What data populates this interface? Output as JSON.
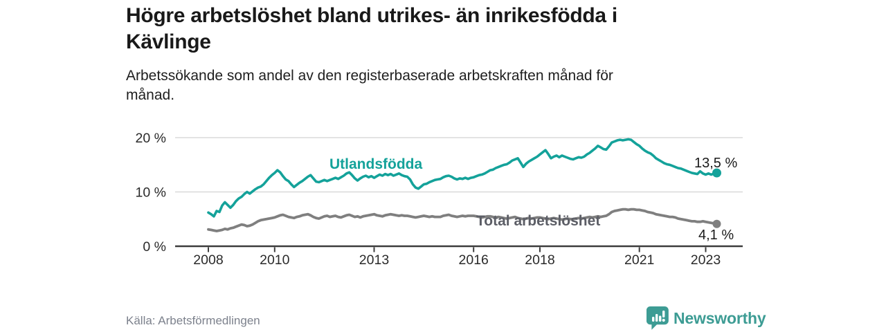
{
  "header": {
    "title": "Högre arbetslöshet bland utrikes- än inrikesfödda i\nKävlinge",
    "subtitle": "Arbetssökande som andel av den registerbaserade arbetskraften månad för\nmånad."
  },
  "footer": {
    "source": "Källa: Arbetsförmedlingen",
    "brand": "Newsworthy"
  },
  "colors": {
    "series_utlandsfodda": "#14a29a",
    "series_total": "#7f7f7f",
    "series_total_label": "#5c5e66",
    "gridline": "#d2d2d2",
    "axis": "#3c3c3c",
    "tick_label": "#2a2a2a",
    "annotation": "#1a1a1a",
    "logo_teal": "#3d9c94"
  },
  "chart_data": {
    "type": "line",
    "title": "Högre arbetslöshet bland utrikes- än inrikesfödda i Kävlinge",
    "subtitle": "Arbetssökande som andel av den registerbaserade arbetskraften månad för månad.",
    "source": "Källa: Arbetsförmedlingen",
    "x_unit": "year-month",
    "x_start": 2008.0,
    "x_step_months": 1,
    "x_end": "2023-05",
    "x_ticks": [
      "2008",
      "2010",
      "2013",
      "2016",
      "2018",
      "2021",
      "2023"
    ],
    "x_tick_years": [
      2008,
      2010,
      2013,
      2016,
      2018,
      2021,
      2023
    ],
    "y_ticks": [
      0,
      10,
      20
    ],
    "y_tick_labels": [
      "0 %",
      "10 %",
      "20 %"
    ],
    "ylim": [
      0,
      21.7
    ],
    "grid": "horizontal-only",
    "legend": "inline-labels",
    "series": [
      {
        "name": "Utlandsfödda",
        "color": "#14a29a",
        "end_label": "13,5 %",
        "end_value": 13.5,
        "values": [
          6.2,
          5.9,
          5.5,
          6.5,
          6.3,
          7.5,
          8.1,
          7.6,
          7.1,
          7.6,
          8.3,
          8.8,
          9.1,
          9.6,
          10.0,
          9.7,
          10.1,
          10.5,
          10.8,
          11.0,
          11.4,
          12.0,
          12.6,
          13.1,
          13.5,
          14.0,
          13.6,
          12.9,
          12.3,
          12.0,
          11.4,
          10.9,
          11.3,
          11.7,
          12.0,
          12.4,
          12.8,
          13.1,
          12.5,
          11.9,
          11.8,
          12.0,
          12.2,
          12.0,
          12.2,
          12.4,
          12.6,
          12.4,
          12.7,
          13.0,
          13.4,
          13.6,
          13.1,
          12.5,
          12.1,
          12.5,
          12.8,
          13.0,
          12.7,
          12.9,
          12.6,
          12.9,
          13.2,
          13.0,
          13.3,
          13.1,
          13.3,
          13.0,
          13.2,
          13.4,
          13.1,
          12.9,
          12.8,
          12.3,
          11.4,
          10.8,
          10.6,
          11.0,
          11.4,
          11.5,
          11.8,
          12.0,
          12.2,
          12.3,
          12.4,
          12.7,
          12.9,
          13.0,
          12.8,
          12.5,
          12.3,
          12.5,
          12.4,
          12.6,
          12.4,
          12.6,
          12.7,
          12.9,
          13.1,
          13.2,
          13.4,
          13.7,
          14.0,
          14.1,
          14.4,
          14.6,
          14.8,
          15.0,
          15.1,
          15.4,
          15.8,
          16.0,
          16.2,
          15.4,
          14.6,
          15.2,
          15.6,
          15.9,
          16.2,
          16.5,
          16.9,
          17.3,
          17.7,
          17.0,
          16.2,
          16.5,
          16.7,
          16.4,
          16.7,
          16.5,
          16.3,
          16.1,
          16.0,
          16.2,
          16.4,
          16.3,
          16.5,
          16.9,
          17.2,
          17.6,
          18.0,
          18.5,
          18.2,
          17.9,
          17.8,
          18.4,
          19.1,
          19.3,
          19.5,
          19.6,
          19.5,
          19.6,
          19.7,
          19.6,
          19.2,
          18.8,
          18.5,
          18.0,
          17.6,
          17.3,
          17.1,
          16.7,
          16.2,
          15.9,
          15.6,
          15.3,
          15.1,
          15.0,
          14.8,
          14.6,
          14.4,
          14.3,
          14.1,
          13.9,
          13.7,
          13.5,
          13.4,
          13.3,
          13.8,
          13.4,
          13.2,
          13.4,
          13.2,
          13.4,
          13.5
        ]
      },
      {
        "name": "Total arbetslöshet",
        "color": "#7f7f7f",
        "end_label": "4,1 %",
        "end_value": 4.1,
        "values": [
          3.1,
          3.0,
          2.9,
          2.8,
          2.9,
          3.0,
          3.2,
          3.1,
          3.3,
          3.4,
          3.6,
          3.8,
          4.0,
          3.9,
          3.7,
          3.8,
          4.0,
          4.3,
          4.6,
          4.8,
          4.9,
          5.0,
          5.1,
          5.2,
          5.3,
          5.5,
          5.7,
          5.8,
          5.6,
          5.4,
          5.3,
          5.2,
          5.4,
          5.5,
          5.7,
          5.8,
          5.9,
          5.7,
          5.4,
          5.2,
          5.1,
          5.3,
          5.5,
          5.6,
          5.4,
          5.5,
          5.6,
          5.4,
          5.3,
          5.5,
          5.7,
          5.8,
          5.6,
          5.4,
          5.5,
          5.3,
          5.5,
          5.6,
          5.7,
          5.8,
          5.9,
          5.7,
          5.6,
          5.5,
          5.7,
          5.8,
          5.9,
          5.8,
          5.7,
          5.6,
          5.7,
          5.6,
          5.6,
          5.5,
          5.4,
          5.3,
          5.4,
          5.5,
          5.6,
          5.5,
          5.4,
          5.5,
          5.4,
          5.4,
          5.4,
          5.6,
          5.7,
          5.8,
          5.6,
          5.5,
          5.4,
          5.5,
          5.6,
          5.5,
          5.6,
          5.6,
          5.6,
          5.5,
          5.4,
          5.3,
          5.4,
          5.5,
          5.5,
          5.4,
          5.3,
          5.4,
          5.3,
          5.2,
          5.1,
          5.2,
          5.3,
          5.4,
          5.2,
          5.1,
          5.0,
          5.1,
          5.2,
          5.1,
          5.2,
          5.3,
          5.3,
          5.2,
          5.1,
          5.0,
          5.1,
          5.2,
          5.1,
          5.0,
          4.9,
          5.0,
          5.1,
          5.0,
          5.0,
          5.1,
          5.2,
          5.1,
          5.2,
          5.3,
          5.4,
          5.3,
          5.4,
          5.5,
          5.4,
          5.5,
          5.6,
          5.9,
          6.3,
          6.5,
          6.6,
          6.7,
          6.8,
          6.8,
          6.7,
          6.8,
          6.8,
          6.7,
          6.7,
          6.6,
          6.5,
          6.3,
          6.2,
          6.1,
          5.9,
          5.8,
          5.7,
          5.6,
          5.5,
          5.4,
          5.4,
          5.3,
          5.1,
          5.0,
          4.9,
          4.8,
          4.7,
          4.6,
          4.6,
          4.5,
          4.5,
          4.6,
          4.5,
          4.4,
          4.3,
          4.2,
          4.1
        ]
      }
    ]
  }
}
